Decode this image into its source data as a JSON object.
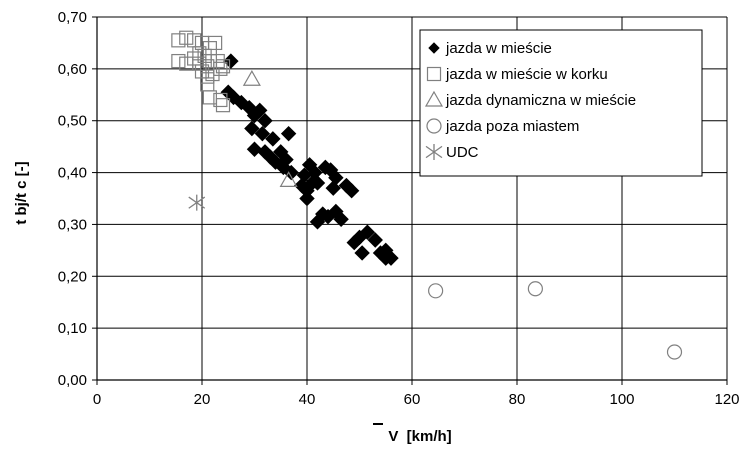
{
  "chart_data": {
    "type": "scatter",
    "xlabel": "V  [km/h]",
    "ylabel": "t bj/t c [-]",
    "xlim": [
      0,
      120
    ],
    "ylim": [
      0.0,
      0.7
    ],
    "x_ticks": [
      "0",
      "20",
      "40",
      "60",
      "80",
      "100",
      "120"
    ],
    "y_ticks": [
      "0,00",
      "0,10",
      "0,20",
      "0,30",
      "0,40",
      "0,50",
      "0,60",
      "0,70"
    ],
    "grid": true,
    "legend_position": "top-right",
    "series": [
      {
        "name": "jazda w mieście",
        "marker": "diamond-filled",
        "color": "#000000",
        "points": [
          [
            25.5,
            0.615
          ],
          [
            25.0,
            0.555
          ],
          [
            26.0,
            0.545
          ],
          [
            27.5,
            0.535
          ],
          [
            29.0,
            0.525
          ],
          [
            30.0,
            0.51
          ],
          [
            31.0,
            0.52
          ],
          [
            32.0,
            0.5
          ],
          [
            29.5,
            0.485
          ],
          [
            31.5,
            0.475
          ],
          [
            33.5,
            0.465
          ],
          [
            36.5,
            0.475
          ],
          [
            30.0,
            0.445
          ],
          [
            32.0,
            0.44
          ],
          [
            33.0,
            0.43
          ],
          [
            34.0,
            0.42
          ],
          [
            35.0,
            0.44
          ],
          [
            36.0,
            0.425
          ],
          [
            35.5,
            0.41
          ],
          [
            37.0,
            0.4
          ],
          [
            39.5,
            0.395
          ],
          [
            40.5,
            0.415
          ],
          [
            41.5,
            0.4
          ],
          [
            39.0,
            0.375
          ],
          [
            40.0,
            0.365
          ],
          [
            41.0,
            0.38
          ],
          [
            40.0,
            0.35
          ],
          [
            42.0,
            0.38
          ],
          [
            43.5,
            0.41
          ],
          [
            44.5,
            0.405
          ],
          [
            45.5,
            0.39
          ],
          [
            45.0,
            0.37
          ],
          [
            47.5,
            0.375
          ],
          [
            48.5,
            0.365
          ],
          [
            42.0,
            0.305
          ],
          [
            43.0,
            0.32
          ],
          [
            44.0,
            0.315
          ],
          [
            45.5,
            0.325
          ],
          [
            46.5,
            0.31
          ],
          [
            49.0,
            0.265
          ],
          [
            50.0,
            0.275
          ],
          [
            50.5,
            0.245
          ],
          [
            51.5,
            0.285
          ],
          [
            53.0,
            0.27
          ],
          [
            54.0,
            0.245
          ],
          [
            55.0,
            0.25
          ],
          [
            55.0,
            0.235
          ],
          [
            56.0,
            0.235
          ]
        ]
      },
      {
        "name": "jazda w mieście w korku",
        "marker": "square-open",
        "color": "#808080",
        "points": [
          [
            15.5,
            0.655
          ],
          [
            17.0,
            0.66
          ],
          [
            18.5,
            0.655
          ],
          [
            20.0,
            0.65
          ],
          [
            21.5,
            0.64
          ],
          [
            22.5,
            0.65
          ],
          [
            20.5,
            0.625
          ],
          [
            21.5,
            0.615
          ],
          [
            23.0,
            0.615
          ],
          [
            23.5,
            0.6
          ],
          [
            24.0,
            0.605
          ],
          [
            19.5,
            0.61
          ],
          [
            20.0,
            0.595
          ],
          [
            21.0,
            0.585
          ],
          [
            22.0,
            0.59
          ],
          [
            15.5,
            0.615
          ],
          [
            17.0,
            0.61
          ],
          [
            18.5,
            0.62
          ],
          [
            21.0,
            0.57
          ],
          [
            21.5,
            0.545
          ],
          [
            23.5,
            0.54
          ],
          [
            24.0,
            0.53
          ],
          [
            19.5,
            0.63
          ],
          [
            21.0,
            0.605
          ]
        ]
      },
      {
        "name": "jazda dynamiczna w mieście",
        "marker": "triangle-open",
        "color": "#808080",
        "points": [
          [
            29.5,
            0.58
          ],
          [
            36.5,
            0.385
          ]
        ]
      },
      {
        "name": "jazda poza miastem",
        "marker": "circle-open",
        "color": "#808080",
        "points": [
          [
            64.5,
            0.172
          ],
          [
            83.5,
            0.176
          ],
          [
            110.0,
            0.054
          ]
        ]
      },
      {
        "name": "UDC",
        "marker": "asterisk",
        "color": "#808080",
        "points": [
          [
            19.0,
            0.342
          ]
        ]
      }
    ]
  }
}
